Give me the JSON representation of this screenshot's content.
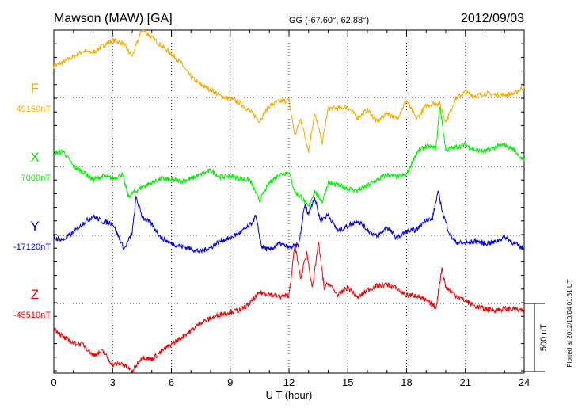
{
  "header": {
    "station": "Mawson (MAW)  [GA]",
    "coords": "GG (-67.60°,  62.88°)",
    "date": "2012/09/03"
  },
  "footer": {
    "plotted": "Plotted at 2012/10/04 01:31  UT"
  },
  "chart_data": {
    "type": "line",
    "title": "Mawson (MAW)  [GA]",
    "xlabel": "U T (hour)",
    "x_ticks": [
      0,
      3,
      6,
      9,
      12,
      15,
      18,
      21,
      24
    ],
    "xlim": [
      0,
      24
    ],
    "grid": true,
    "scale_bar": "500 nT",
    "series": [
      {
        "name": "F",
        "baseline_label": "49150nT",
        "color": "#f5a800",
        "baseline_nT": 49150,
        "x": [
          0,
          0.5,
          1,
          1.5,
          2,
          2.5,
          3,
          3.5,
          4,
          4.2,
          4.5,
          5,
          5.5,
          6,
          6.5,
          7,
          7.5,
          8,
          8.5,
          9,
          9.5,
          10,
          10.5,
          11,
          11.5,
          12,
          12.3,
          12.6,
          13,
          13.3,
          13.7,
          14,
          14.5,
          15,
          15.5,
          16,
          16.5,
          17,
          17.5,
          18,
          18.5,
          19,
          19.5,
          19.7,
          20,
          20.5,
          21,
          21.5,
          22,
          22.5,
          23,
          23.5,
          24
        ],
        "y": [
          230,
          260,
          300,
          340,
          330,
          380,
          420,
          400,
          300,
          380,
          500,
          440,
          380,
          320,
          250,
          150,
          90,
          60,
          10,
          -10,
          -40,
          -100,
          -170,
          -60,
          -30,
          -20,
          -280,
          -160,
          -390,
          -120,
          -330,
          -80,
          -80,
          -70,
          -150,
          -90,
          -180,
          -110,
          -160,
          -20,
          -160,
          -60,
          -40,
          -50,
          -180,
          -10,
          40,
          10,
          30,
          20,
          20,
          30,
          80
        ]
      },
      {
        "name": "X",
        "baseline_label": "7000nT",
        "color": "#00ee00",
        "baseline_nT": 7000,
        "x": [
          0,
          0.5,
          1,
          1.5,
          2,
          2.5,
          3,
          3.5,
          3.8,
          4.2,
          4.5,
          5,
          5.5,
          6,
          6.5,
          7,
          7.5,
          8,
          8.5,
          9,
          9.5,
          10,
          10.5,
          11,
          11.5,
          12,
          12.3,
          12.6,
          13,
          13.3,
          13.7,
          14,
          14.5,
          15,
          15.5,
          16,
          16.5,
          17,
          17.5,
          18,
          18.5,
          19,
          19.5,
          19.7,
          20,
          20.5,
          21,
          21.5,
          22,
          22.5,
          23,
          23.5,
          24
        ],
        "y": [
          100,
          110,
          0,
          -40,
          -100,
          -70,
          -90,
          -60,
          -220,
          -180,
          -150,
          -120,
          -90,
          -100,
          -110,
          -90,
          -60,
          -30,
          -80,
          -70,
          -90,
          -100,
          -250,
          -120,
          -60,
          -40,
          -190,
          -220,
          -300,
          -180,
          -260,
          -120,
          -140,
          -160,
          -180,
          -140,
          -100,
          -60,
          -80,
          -60,
          100,
          150,
          130,
          450,
          120,
          140,
          160,
          120,
          110,
          140,
          160,
          120,
          40
        ]
      },
      {
        "name": "Y",
        "baseline_label": "-17120nT",
        "color": "#0000dd",
        "baseline_nT": -17120,
        "x": [
          0,
          0.5,
          1,
          1.5,
          2,
          2.5,
          3,
          3.3,
          3.6,
          4,
          4.2,
          4.5,
          5,
          5.5,
          6,
          6.5,
          7,
          7.5,
          8,
          8.5,
          9,
          9.5,
          10,
          10.3,
          10.6,
          11,
          11.5,
          12,
          12.5,
          12.8,
          13,
          13.3,
          13.6,
          14,
          14.5,
          15,
          15.5,
          16,
          16.5,
          17,
          17.5,
          18,
          18.5,
          19,
          19.3,
          19.6,
          19.9,
          20.2,
          20.5,
          21,
          21.5,
          22,
          22.5,
          23,
          23.5,
          24
        ],
        "y": [
          -20,
          -30,
          20,
          90,
          140,
          100,
          90,
          -10,
          -100,
          20,
          280,
          140,
          80,
          -20,
          -60,
          -80,
          -100,
          -120,
          -90,
          -40,
          -20,
          20,
          70,
          140,
          -80,
          -110,
          -60,
          -90,
          -70,
          220,
          160,
          280,
          110,
          150,
          30,
          70,
          110,
          40,
          -10,
          60,
          -20,
          30,
          40,
          120,
          110,
          320,
          140,
          10,
          -50,
          -60,
          -40,
          -60,
          -50,
          -10,
          -60,
          -100
        ]
      },
      {
        "name": "Z",
        "baseline_label": "-45510nT",
        "color": "#ee0000",
        "baseline_nT": -45510,
        "x": [
          0,
          0.5,
          1,
          1.5,
          2,
          2.5,
          3,
          3.5,
          4,
          4.5,
          5,
          5.5,
          6,
          6.5,
          7,
          7.5,
          8,
          8.5,
          9,
          9.5,
          10,
          10.5,
          11,
          11.5,
          12,
          12.3,
          12.6,
          12.9,
          13.2,
          13.5,
          13.8,
          14,
          14.5,
          15,
          15.5,
          16,
          16.5,
          17,
          17.5,
          18,
          18.5,
          19,
          19.5,
          19.8,
          20,
          20.5,
          21,
          21.5,
          22,
          22.5,
          23,
          23.5,
          24
        ],
        "y": [
          -180,
          -250,
          -290,
          -300,
          -380,
          -350,
          -450,
          -440,
          -500,
          -390,
          -410,
          -350,
          -300,
          -250,
          -200,
          -140,
          -110,
          -80,
          -60,
          -50,
          0,
          80,
          70,
          50,
          60,
          430,
          180,
          380,
          110,
          450,
          110,
          150,
          60,
          120,
          40,
          100,
          130,
          140,
          110,
          60,
          60,
          20,
          -30,
          260,
          120,
          60,
          20,
          -20,
          -40,
          -50,
          -40,
          -40,
          -60
        ]
      }
    ]
  }
}
